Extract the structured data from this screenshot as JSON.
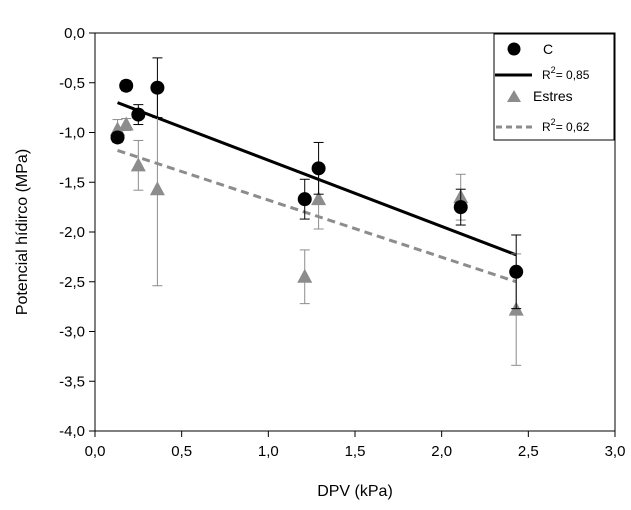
{
  "chart_data": {
    "type": "scatter",
    "xlabel": "DPV (kPa)",
    "ylabel": "Potencial hídirco (MPa)",
    "xlim": [
      0.0,
      3.0
    ],
    "ylim": [
      -4.0,
      0.0
    ],
    "x_ticks": [
      "0,0",
      "0,5",
      "1,0",
      "1,5",
      "2,0",
      "2,5",
      "3,0"
    ],
    "y_ticks": [
      "0,0",
      "-0,5",
      "-1,0",
      "-1,5",
      "-2,0",
      "-2,5",
      "-3,0",
      "-3,5",
      "-4,0"
    ],
    "grid": false,
    "legend_position": "top-right",
    "series": [
      {
        "name": "C",
        "marker": "circle",
        "color": "#000000",
        "points": [
          {
            "x": 0.13,
            "y": -1.05,
            "err": 0.05
          },
          {
            "x": 0.18,
            "y": -0.53,
            "err": 0.05
          },
          {
            "x": 0.25,
            "y": -0.82,
            "err": 0.1
          },
          {
            "x": 0.36,
            "y": -0.55,
            "err": 0.3
          },
          {
            "x": 1.21,
            "y": -1.67,
            "err": 0.2
          },
          {
            "x": 1.29,
            "y": -1.36,
            "err": 0.26
          },
          {
            "x": 2.11,
            "y": -1.75,
            "err": 0.18
          },
          {
            "x": 2.43,
            "y": -2.4,
            "err": 0.37
          }
        ],
        "fit": {
          "x": [
            0.13,
            2.43
          ],
          "y": [
            -0.7,
            -2.23
          ],
          "label": "R",
          "r2_value": "= 0,85",
          "style": "solid"
        }
      },
      {
        "name": "Estres",
        "marker": "triangle",
        "color": "#8c8c8c",
        "points": [
          {
            "x": 0.13,
            "y": -0.97,
            "err": 0.1
          },
          {
            "x": 0.18,
            "y": -0.92,
            "err": 0.06
          },
          {
            "x": 0.25,
            "y": -1.33,
            "err": 0.25
          },
          {
            "x": 0.36,
            "y": -1.57,
            "err": 0.97
          },
          {
            "x": 1.21,
            "y": -2.45,
            "err": 0.27
          },
          {
            "x": 1.29,
            "y": -1.67,
            "err": 0.3
          },
          {
            "x": 2.11,
            "y": -1.65,
            "err": 0.23
          },
          {
            "x": 2.43,
            "y": -2.78,
            "err": 0.56
          }
        ],
        "fit": {
          "x": [
            0.13,
            2.43
          ],
          "y": [
            -1.18,
            -2.5
          ],
          "label": "R",
          "r2_value": "= 0,62",
          "style": "dashed"
        }
      }
    ]
  }
}
